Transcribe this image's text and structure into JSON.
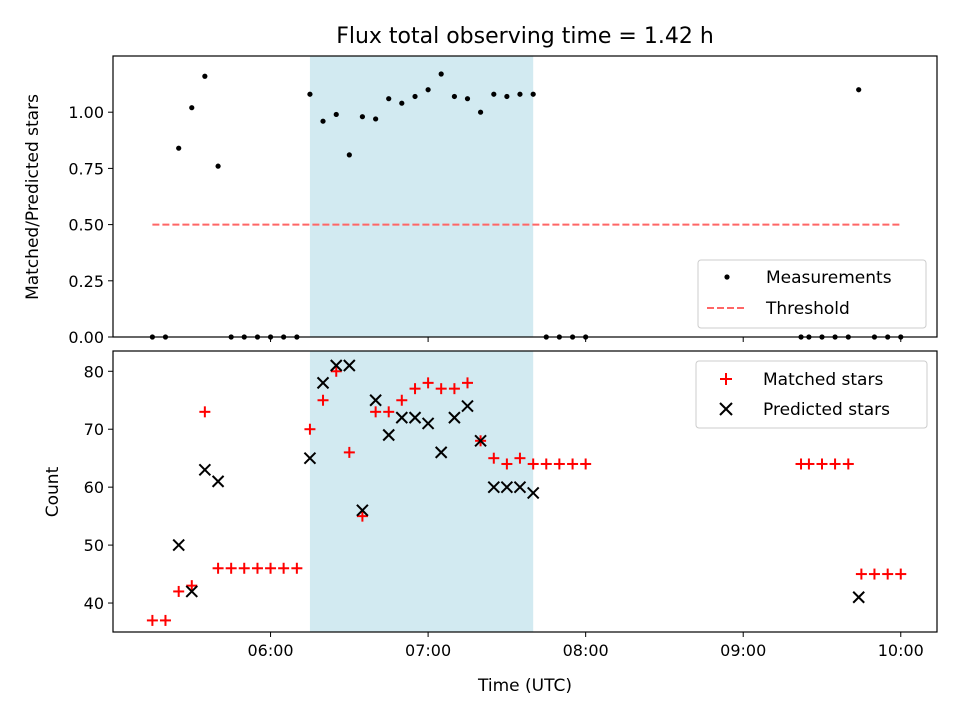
{
  "chart_data": {
    "title": "Flux total observing time = 1.42 h",
    "xlabel": "Time (UTC)",
    "x_unit": "hours UTC (decimal)",
    "xlim": [
      5.0,
      10.23
    ],
    "xticks": [
      {
        "value": 6,
        "label": "06:00"
      },
      {
        "value": 7,
        "label": "07:00"
      },
      {
        "value": 8,
        "label": "08:00"
      },
      {
        "value": 9,
        "label": "09:00"
      },
      {
        "value": 10,
        "label": "10:00"
      }
    ],
    "shaded_interval": {
      "start": 6.25,
      "end": 7.667,
      "color": "#add8e6"
    },
    "panels": [
      {
        "type": "scatter",
        "ylabel": "Matched/Predicted stars",
        "ylim": [
          0,
          1.25
        ],
        "yticks": [
          "0.00",
          "0.25",
          "0.50",
          "0.75",
          "1.00"
        ],
        "threshold": {
          "name": "Threshold",
          "value": 0.5,
          "x_start": 5.25,
          "x_end": 10.0,
          "color": "#ff6666"
        },
        "legend": {
          "position": "lower-right",
          "entries": [
            "Measurements",
            "Threshold"
          ]
        },
        "series": [
          {
            "name": "Measurements",
            "marker": "dot",
            "color": "#000000",
            "points": [
              [
                5.25,
                0.0
              ],
              [
                5.333,
                0.0
              ],
              [
                5.417,
                0.84
              ],
              [
                5.5,
                1.02
              ],
              [
                5.583,
                1.16
              ],
              [
                5.667,
                0.76
              ],
              [
                5.75,
                0.0
              ],
              [
                5.833,
                0.0
              ],
              [
                5.917,
                0.0
              ],
              [
                6.0,
                0.0
              ],
              [
                6.083,
                0.0
              ],
              [
                6.167,
                0.0
              ],
              [
                6.25,
                1.08
              ],
              [
                6.333,
                0.96
              ],
              [
                6.417,
                0.99
              ],
              [
                6.5,
                0.81
              ],
              [
                6.583,
                0.98
              ],
              [
                6.667,
                0.97
              ],
              [
                6.75,
                1.06
              ],
              [
                6.833,
                1.04
              ],
              [
                6.917,
                1.07
              ],
              [
                7.0,
                1.1
              ],
              [
                7.083,
                1.17
              ],
              [
                7.167,
                1.07
              ],
              [
                7.25,
                1.06
              ],
              [
                7.333,
                1.0
              ],
              [
                7.417,
                1.08
              ],
              [
                7.5,
                1.07
              ],
              [
                7.583,
                1.08
              ],
              [
                7.667,
                1.08
              ],
              [
                7.75,
                0.0
              ],
              [
                7.833,
                0.0
              ],
              [
                7.917,
                0.0
              ],
              [
                8.0,
                0.0
              ],
              [
                9.367,
                0.0
              ],
              [
                9.417,
                0.0
              ],
              [
                9.5,
                0.0
              ],
              [
                9.583,
                0.0
              ],
              [
                9.667,
                0.0
              ],
              [
                9.733,
                1.1
              ],
              [
                9.833,
                0.0
              ],
              [
                9.917,
                0.0
              ],
              [
                10.0,
                0.0
              ]
            ]
          }
        ]
      },
      {
        "type": "scatter",
        "ylabel": "Count",
        "ylim": [
          35,
          83.5
        ],
        "yticks": [
          "40",
          "50",
          "60",
          "70",
          "80"
        ],
        "legend": {
          "position": "top-right",
          "entries": [
            "Matched stars",
            "Predicted stars"
          ]
        },
        "series": [
          {
            "name": "Matched stars",
            "marker": "plus",
            "color": "#ff0000",
            "points": [
              [
                5.25,
                37
              ],
              [
                5.333,
                37
              ],
              [
                5.417,
                42
              ],
              [
                5.5,
                43
              ],
              [
                5.583,
                73
              ],
              [
                5.667,
                46
              ],
              [
                5.75,
                46
              ],
              [
                5.833,
                46
              ],
              [
                5.917,
                46
              ],
              [
                6.0,
                46
              ],
              [
                6.083,
                46
              ],
              [
                6.167,
                46
              ],
              [
                6.25,
                70
              ],
              [
                6.333,
                75
              ],
              [
                6.417,
                80
              ],
              [
                6.5,
                66
              ],
              [
                6.583,
                55
              ],
              [
                6.667,
                73
              ],
              [
                6.75,
                73
              ],
              [
                6.833,
                75
              ],
              [
                6.917,
                77
              ],
              [
                7.0,
                78
              ],
              [
                7.083,
                77
              ],
              [
                7.167,
                77
              ],
              [
                7.25,
                78
              ],
              [
                7.333,
                68
              ],
              [
                7.417,
                65
              ],
              [
                7.5,
                64
              ],
              [
                7.583,
                65
              ],
              [
                7.667,
                64
              ],
              [
                7.75,
                64
              ],
              [
                7.833,
                64
              ],
              [
                7.917,
                64
              ],
              [
                8.0,
                64
              ],
              [
                9.367,
                64
              ],
              [
                9.417,
                64
              ],
              [
                9.5,
                64
              ],
              [
                9.583,
                64
              ],
              [
                9.667,
                64
              ],
              [
                9.75,
                45
              ],
              [
                9.833,
                45
              ],
              [
                9.917,
                45
              ],
              [
                10.0,
                45
              ]
            ]
          },
          {
            "name": "Predicted stars",
            "marker": "x",
            "color": "#000000",
            "points": [
              [
                5.417,
                50
              ],
              [
                5.5,
                42
              ],
              [
                5.583,
                63
              ],
              [
                5.667,
                61
              ],
              [
                6.25,
                65
              ],
              [
                6.333,
                78
              ],
              [
                6.417,
                81
              ],
              [
                6.5,
                81
              ],
              [
                6.583,
                56
              ],
              [
                6.667,
                75
              ],
              [
                6.75,
                69
              ],
              [
                6.833,
                72
              ],
              [
                6.917,
                72
              ],
              [
                7.0,
                71
              ],
              [
                7.083,
                66
              ],
              [
                7.167,
                72
              ],
              [
                7.25,
                74
              ],
              [
                7.333,
                68
              ],
              [
                7.417,
                60
              ],
              [
                7.5,
                60
              ],
              [
                7.583,
                60
              ],
              [
                7.667,
                59
              ],
              [
                9.733,
                41
              ]
            ]
          }
        ]
      }
    ]
  }
}
